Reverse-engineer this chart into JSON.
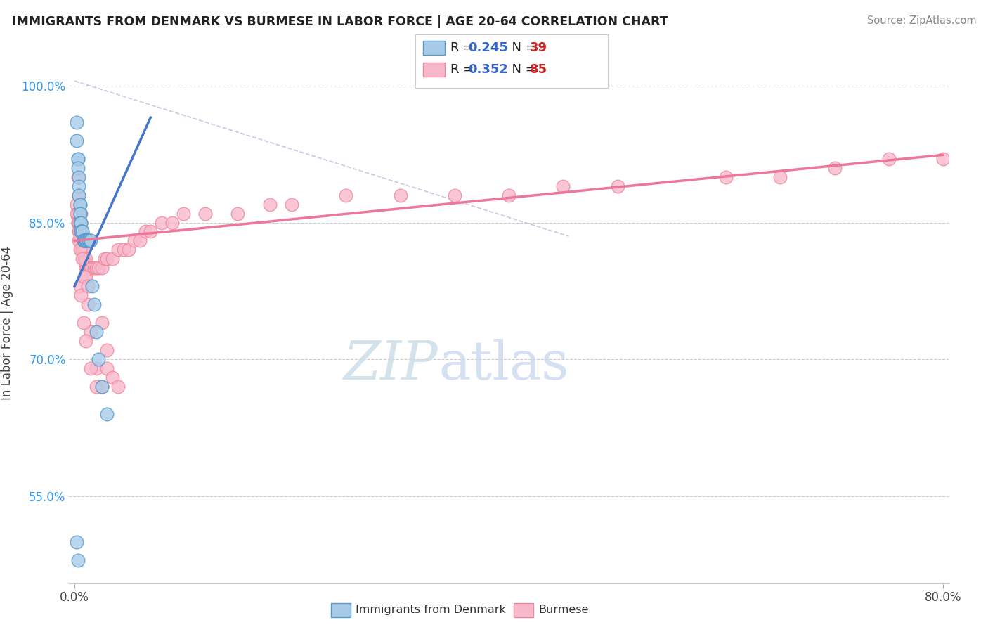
{
  "title": "IMMIGRANTS FROM DENMARK VS BURMESE IN LABOR FORCE | AGE 20-64 CORRELATION CHART",
  "source": "Source: ZipAtlas.com",
  "ylabel": "In Labor Force | Age 20-64",
  "xlim": [
    -0.005,
    0.805
  ],
  "ylim": [
    0.455,
    1.025
  ],
  "xtick_positions": [
    0.0,
    0.8
  ],
  "xticklabels": [
    "0.0%",
    "80.0%"
  ],
  "ytick_positions": [
    0.55,
    0.7,
    0.85,
    1.0
  ],
  "ytick_labels": [
    "55.0%",
    "70.0%",
    "85.0%",
    "100.0%"
  ],
  "blue_R": 0.245,
  "blue_N": 39,
  "pink_R": 0.352,
  "pink_N": 85,
  "blue_color": "#a8cce8",
  "pink_color": "#f8b8cc",
  "blue_edge": "#5599cc",
  "pink_edge": "#ee8899",
  "trend_blue": "#4477cc",
  "trend_pink": "#ee7799",
  "ref_line_color": "#bbbbdd",
  "watermark_color": "#ccdde8",
  "legend_R_color": "#3366cc",
  "legend_N_color": "#cc2222",
  "blue_scatter_x": [
    0.002,
    0.002,
    0.003,
    0.003,
    0.003,
    0.004,
    0.004,
    0.004,
    0.005,
    0.005,
    0.005,
    0.005,
    0.005,
    0.006,
    0.006,
    0.006,
    0.006,
    0.007,
    0.007,
    0.008,
    0.008,
    0.008,
    0.009,
    0.009,
    0.01,
    0.01,
    0.011,
    0.012,
    0.013,
    0.014,
    0.015,
    0.016,
    0.018,
    0.02,
    0.022,
    0.025,
    0.03,
    0.003,
    0.002
  ],
  "blue_scatter_y": [
    0.96,
    0.94,
    0.92,
    0.92,
    0.91,
    0.9,
    0.89,
    0.88,
    0.87,
    0.87,
    0.86,
    0.86,
    0.85,
    0.85,
    0.85,
    0.84,
    0.84,
    0.84,
    0.84,
    0.83,
    0.83,
    0.83,
    0.83,
    0.83,
    0.83,
    0.83,
    0.83,
    0.83,
    0.83,
    0.83,
    0.83,
    0.78,
    0.76,
    0.73,
    0.7,
    0.67,
    0.64,
    0.48,
    0.5
  ],
  "pink_scatter_x": [
    0.002,
    0.002,
    0.003,
    0.003,
    0.003,
    0.004,
    0.004,
    0.004,
    0.005,
    0.005,
    0.005,
    0.005,
    0.006,
    0.006,
    0.006,
    0.007,
    0.007,
    0.008,
    0.008,
    0.009,
    0.009,
    0.01,
    0.01,
    0.011,
    0.012,
    0.013,
    0.015,
    0.016,
    0.018,
    0.02,
    0.022,
    0.025,
    0.028,
    0.03,
    0.035,
    0.04,
    0.045,
    0.05,
    0.055,
    0.06,
    0.065,
    0.07,
    0.08,
    0.09,
    0.1,
    0.12,
    0.15,
    0.18,
    0.2,
    0.25,
    0.3,
    0.35,
    0.4,
    0.45,
    0.5,
    0.6,
    0.65,
    0.7,
    0.75,
    0.8,
    0.003,
    0.004,
    0.006,
    0.008,
    0.01,
    0.012,
    0.015,
    0.02,
    0.025,
    0.03,
    0.005,
    0.006,
    0.008,
    0.01,
    0.015,
    0.02,
    0.025,
    0.03,
    0.035,
    0.04,
    0.004,
    0.005,
    0.007,
    0.009,
    0.012
  ],
  "pink_scatter_y": [
    0.87,
    0.86,
    0.86,
    0.85,
    0.85,
    0.85,
    0.84,
    0.84,
    0.84,
    0.83,
    0.83,
    0.83,
    0.83,
    0.83,
    0.82,
    0.82,
    0.82,
    0.82,
    0.81,
    0.81,
    0.81,
    0.81,
    0.8,
    0.8,
    0.8,
    0.8,
    0.8,
    0.8,
    0.8,
    0.8,
    0.8,
    0.8,
    0.81,
    0.81,
    0.81,
    0.82,
    0.82,
    0.82,
    0.83,
    0.83,
    0.84,
    0.84,
    0.85,
    0.85,
    0.86,
    0.86,
    0.86,
    0.87,
    0.87,
    0.88,
    0.88,
    0.88,
    0.88,
    0.89,
    0.89,
    0.9,
    0.9,
    0.91,
    0.92,
    0.92,
    0.9,
    0.88,
    0.86,
    0.83,
    0.79,
    0.76,
    0.73,
    0.69,
    0.74,
    0.71,
    0.78,
    0.77,
    0.74,
    0.72,
    0.69,
    0.67,
    0.67,
    0.69,
    0.68,
    0.67,
    0.83,
    0.82,
    0.81,
    0.79,
    0.78
  ],
  "blue_trend_x": [
    0.0,
    0.07
  ],
  "blue_trend_y": [
    0.78,
    0.965
  ],
  "pink_trend_x": [
    0.0,
    0.8
  ],
  "pink_trend_y": [
    0.83,
    0.924
  ],
  "ref_line_x": [
    0.0,
    0.455
  ],
  "ref_line_y": [
    1.005,
    0.835
  ]
}
